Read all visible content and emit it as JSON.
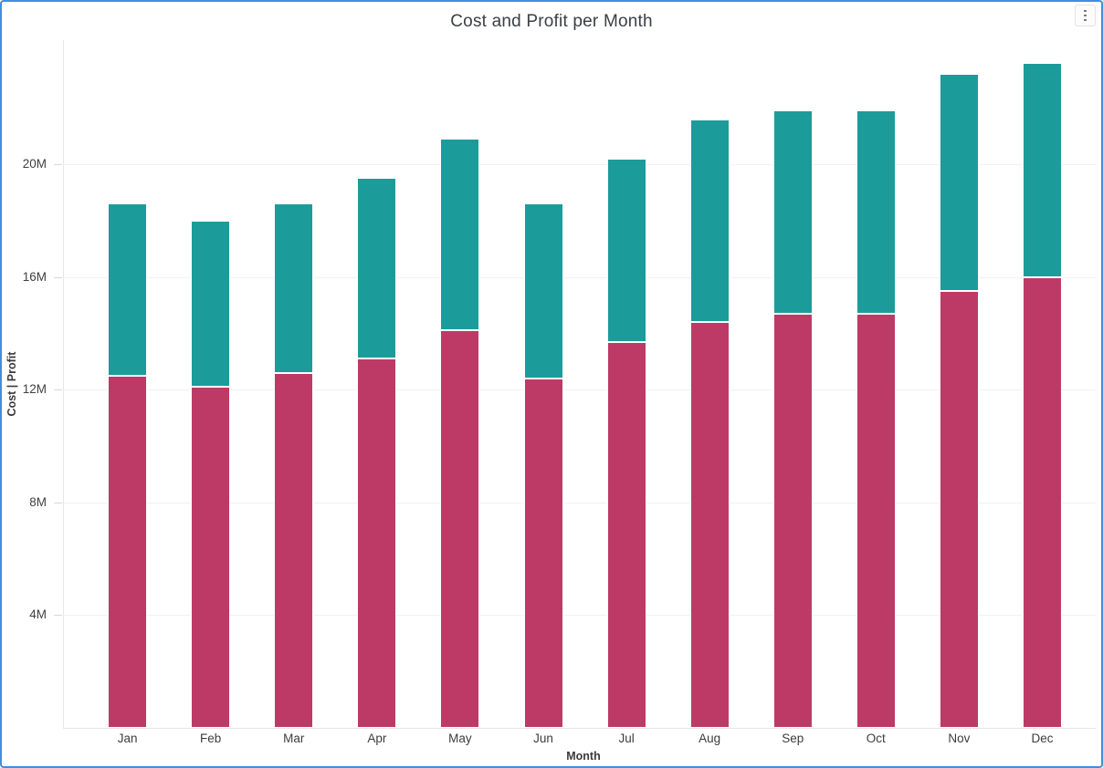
{
  "header": {
    "title": "Cost and Profit per Month"
  },
  "chart_data": {
    "type": "bar",
    "stacked": true,
    "title": "Cost and Profit per Month",
    "xlabel": "Month",
    "ylabel": "Cost | Profit",
    "unit": "M",
    "categories": [
      "Jan",
      "Feb",
      "Mar",
      "Apr",
      "May",
      "Jun",
      "Jul",
      "Aug",
      "Sep",
      "Oct",
      "Nov",
      "Dec"
    ],
    "series": [
      {
        "name": "Cost",
        "color": "#BD3A67",
        "values_millions": [
          12.5,
          12.1,
          12.6,
          13.1,
          14.1,
          12.4,
          13.7,
          14.4,
          14.7,
          14.7,
          15.5,
          16.0
        ]
      },
      {
        "name": "Profit",
        "color": "#1B9C9B",
        "values_millions": [
          6.1,
          5.9,
          6.0,
          6.4,
          6.8,
          6.2,
          6.5,
          7.2,
          7.2,
          7.2,
          7.7,
          7.6
        ]
      }
    ],
    "totals_millions": [
      18.6,
      18.0,
      18.6,
      19.5,
      20.9,
      18.6,
      20.2,
      21.6,
      21.9,
      21.9,
      23.2,
      23.6
    ],
    "y_tick_labels": [
      "4M",
      "8M",
      "12M",
      "16M",
      "20M"
    ],
    "y_tick_values_millions": [
      4,
      8,
      12,
      16,
      20
    ],
    "ylim_millions": [
      0,
      24.4
    ],
    "grid": true,
    "legend_position": "none"
  },
  "colors": {
    "frame_border": "#3F8EE4",
    "grid_line": "#f1f1f1",
    "axis_line": "#e6e6e6",
    "tick_mark": "#d8d8d8",
    "title_text": "#3b4046",
    "label_text": "#404040",
    "background": "#ffffff"
  }
}
